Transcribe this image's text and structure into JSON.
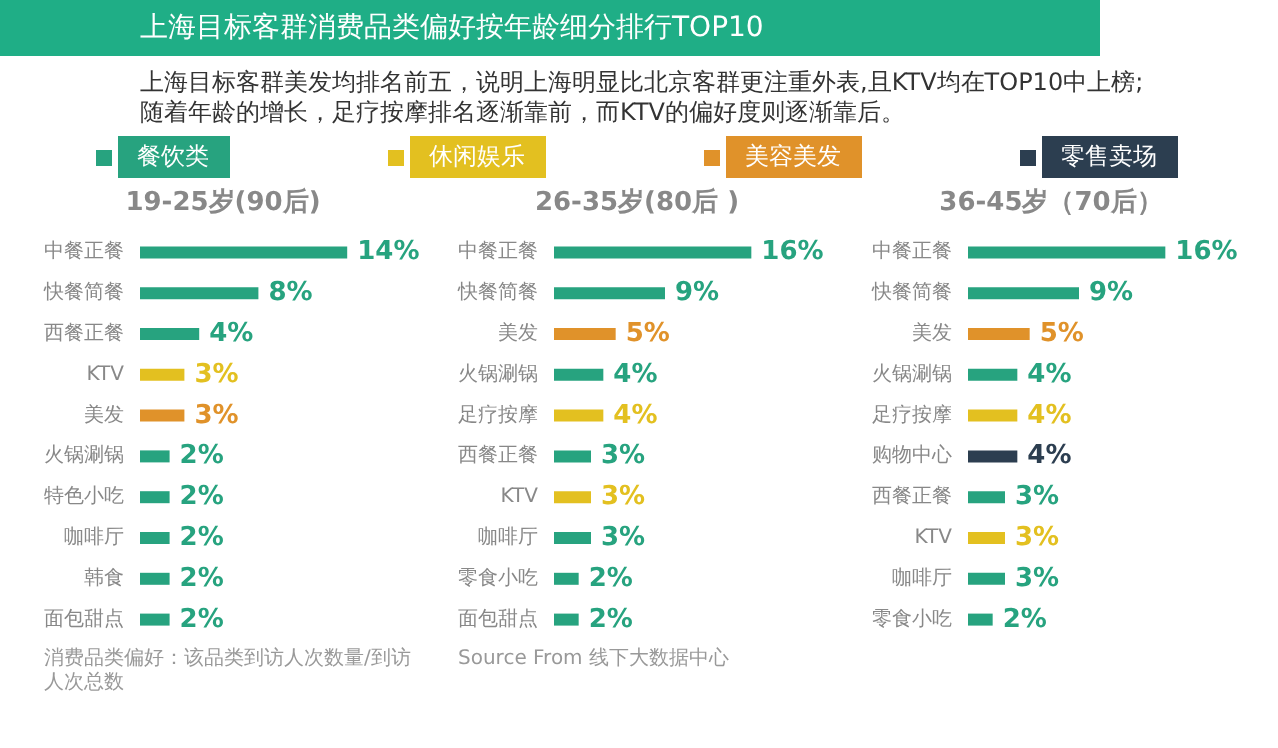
{
  "chart_data": [
    {
      "type": "other",
      "title": "上海目标客群消费品类偏好按年龄细分排行TOP10",
      "subtitle": "上海目标客群美发均排名前五，说明上海明显比北京客群更注重外表,且KTV均在TOP10中上榜; 随着年龄的增长，足疗按摩排名逐渐靠前，而KTV的偏好度则逐渐靠后。"
    },
    {
      "type": "bar",
      "orientation": "horizontal",
      "stacked": true,
      "legend": "top",
      "title": "19-25岁(90后)",
      "categories": [
        "中餐正餐",
        "快餐简餐",
        "西餐正餐",
        "KTV",
        "美发",
        "火锅涮锅",
        "特色小吃",
        "咖啡厅",
        "韩食",
        "面包甜点"
      ],
      "series": [
        {
          "name": "餐饮类",
          "color": "#27a37f",
          "values": [
            14,
            8,
            4,
            null,
            null,
            2,
            2,
            2,
            2,
            2
          ],
          "value_labels": [
            "14%",
            "8%",
            "4%",
            null,
            null,
            "2%",
            "2%",
            "2%",
            "2%",
            "2%"
          ]
        },
        {
          "name": "休闲娱乐",
          "color": "#e3c020",
          "values": [
            null,
            null,
            null,
            3,
            null,
            null,
            null,
            null,
            null,
            null
          ],
          "value_labels": [
            null,
            null,
            null,
            "3%",
            null,
            null,
            null,
            null,
            null,
            null
          ]
        },
        {
          "name": "美容美发",
          "color": "#e0922a",
          "values": [
            null,
            null,
            null,
            null,
            3,
            null,
            null,
            null,
            null,
            null
          ],
          "value_labels": [
            null,
            null,
            null,
            null,
            "3%",
            null,
            null,
            null,
            null,
            null
          ]
        },
        {
          "name": "零售卖场",
          "color": "#2c3e50",
          "values": [
            null,
            null,
            null,
            null,
            null,
            null,
            null,
            null,
            null,
            null
          ]
        }
      ],
      "annotations": [
        "消费品类偏好：该品类到访人次数量/到访人次总数"
      ]
    },
    {
      "type": "bar",
      "orientation": "horizontal",
      "stacked": true,
      "title": "26-35岁(80后 )",
      "categories": [
        "中餐正餐",
        "快餐简餐",
        "美发",
        "火锅涮锅",
        "足疗按摩",
        "西餐正餐",
        "KTV",
        "咖啡厅",
        "零食小吃",
        "面包甜点"
      ],
      "series": [
        {
          "color": "#27a37f",
          "values": [
            16,
            9,
            null,
            4,
            null,
            3,
            null,
            3,
            2,
            2
          ],
          "value_labels": [
            "16%",
            "9%",
            null,
            "4%",
            null,
            "3%",
            null,
            "3%",
            "2%",
            "2%"
          ]
        },
        {
          "color": "#e3c020",
          "values": [
            null,
            null,
            null,
            null,
            4,
            null,
            3,
            null,
            null,
            null
          ],
          "value_labels": [
            null,
            null,
            null,
            null,
            "4%",
            null,
            "3%",
            null,
            null,
            null
          ]
        },
        {
          "color": "#e0922a",
          "values": [
            null,
            null,
            5,
            null,
            null,
            null,
            null,
            null,
            null,
            null
          ],
          "value_labels": [
            null,
            null,
            "5%",
            null,
            null,
            null,
            null,
            null,
            null,
            null
          ]
        }
      ],
      "annotations": [
        "Source From 线下大数据中心"
      ]
    },
    {
      "type": "bar",
      "orientation": "horizontal",
      "stacked": true,
      "title": "36-45岁（70后）",
      "categories": [
        "中餐正餐",
        "快餐简餐",
        "美发",
        "火锅涮锅",
        "足疗按摩",
        "购物中心",
        "西餐正餐",
        "KTV",
        "咖啡厅",
        "零食小吃"
      ],
      "series": [
        {
          "color": "#27a37f",
          "values": [
            16,
            9,
            null,
            4,
            null,
            null,
            3,
            null,
            3,
            2
          ],
          "value_labels": [
            "16%",
            "9%",
            null,
            "4%",
            null,
            null,
            "3%",
            null,
            "3%",
            "2%"
          ]
        },
        {
          "color": "#e3c020",
          "values": [
            null,
            null,
            null,
            null,
            4,
            null,
            null,
            3,
            null,
            null
          ],
          "value_labels": [
            null,
            null,
            null,
            null,
            "4%",
            null,
            null,
            "3%",
            null,
            null
          ]
        },
        {
          "color": "#e0922a",
          "values": [
            null,
            null,
            5,
            null,
            null,
            null,
            null,
            null,
            null,
            null
          ],
          "value_labels": [
            null,
            null,
            "5%",
            null,
            null,
            null,
            null,
            null,
            null,
            null
          ]
        },
        {
          "color": "#2c3e50",
          "values": [
            null,
            null,
            null,
            null,
            null,
            4,
            null,
            null,
            null,
            null
          ],
          "value_labels": [
            null,
            null,
            null,
            null,
            null,
            "4%",
            null,
            null,
            null,
            null
          ]
        }
      ]
    }
  ]
}
